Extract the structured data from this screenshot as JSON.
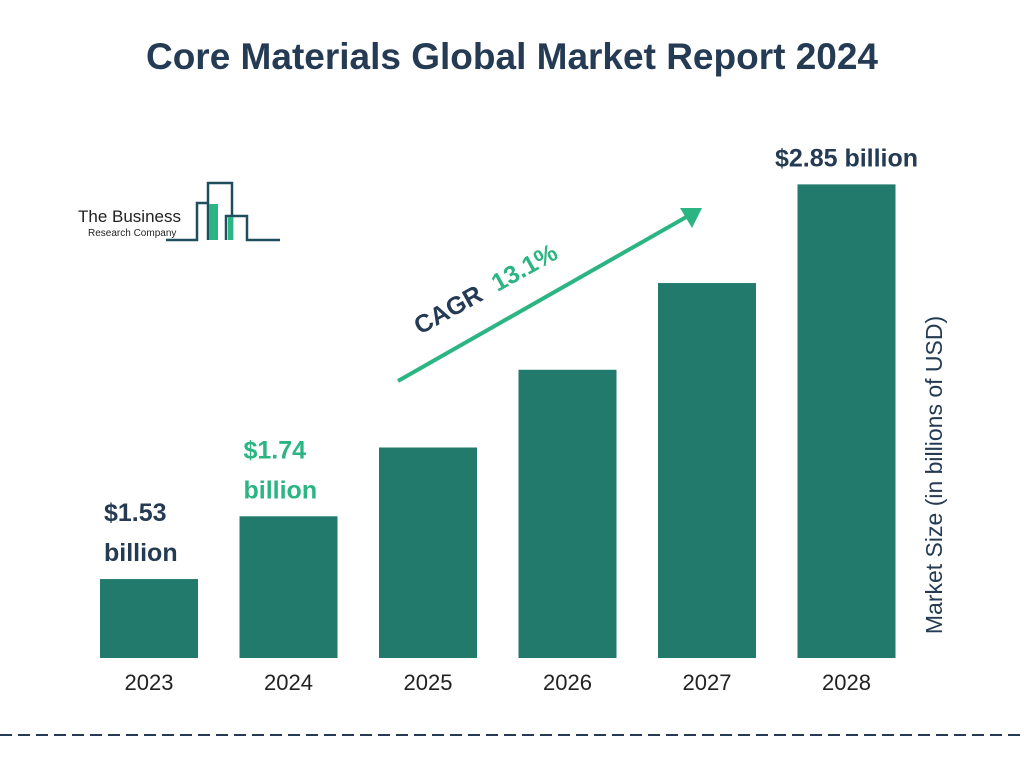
{
  "title": "Core Materials Global Market Report 2024",
  "logo": {
    "line1": "The Business",
    "line2": "Research Company"
  },
  "cagr": {
    "label": "CAGR",
    "value": "13.1%"
  },
  "colors": {
    "bar": "#217a6b",
    "accent": "#2bb583",
    "text": "#243b53"
  },
  "chart_data": {
    "type": "bar",
    "title": "Core Materials Global Market Report 2024",
    "categories": [
      "2023",
      "2024",
      "2025",
      "2026",
      "2027",
      "2028"
    ],
    "values": [
      1.53,
      1.74,
      1.97,
      2.23,
      2.52,
      2.85
    ],
    "data_labels": [
      {
        "index": 0,
        "lines": [
          "$1.53",
          "billion"
        ],
        "color": "#243b53"
      },
      {
        "index": 1,
        "lines": [
          "$1.74",
          "billion"
        ],
        "color": "#2bb583"
      },
      {
        "index": 5,
        "lines": [
          "$2.85 billion"
        ],
        "color": "#243b53"
      }
    ],
    "xlabel": "",
    "ylabel": "Market Size (in billions of USD)",
    "grid": false
  }
}
